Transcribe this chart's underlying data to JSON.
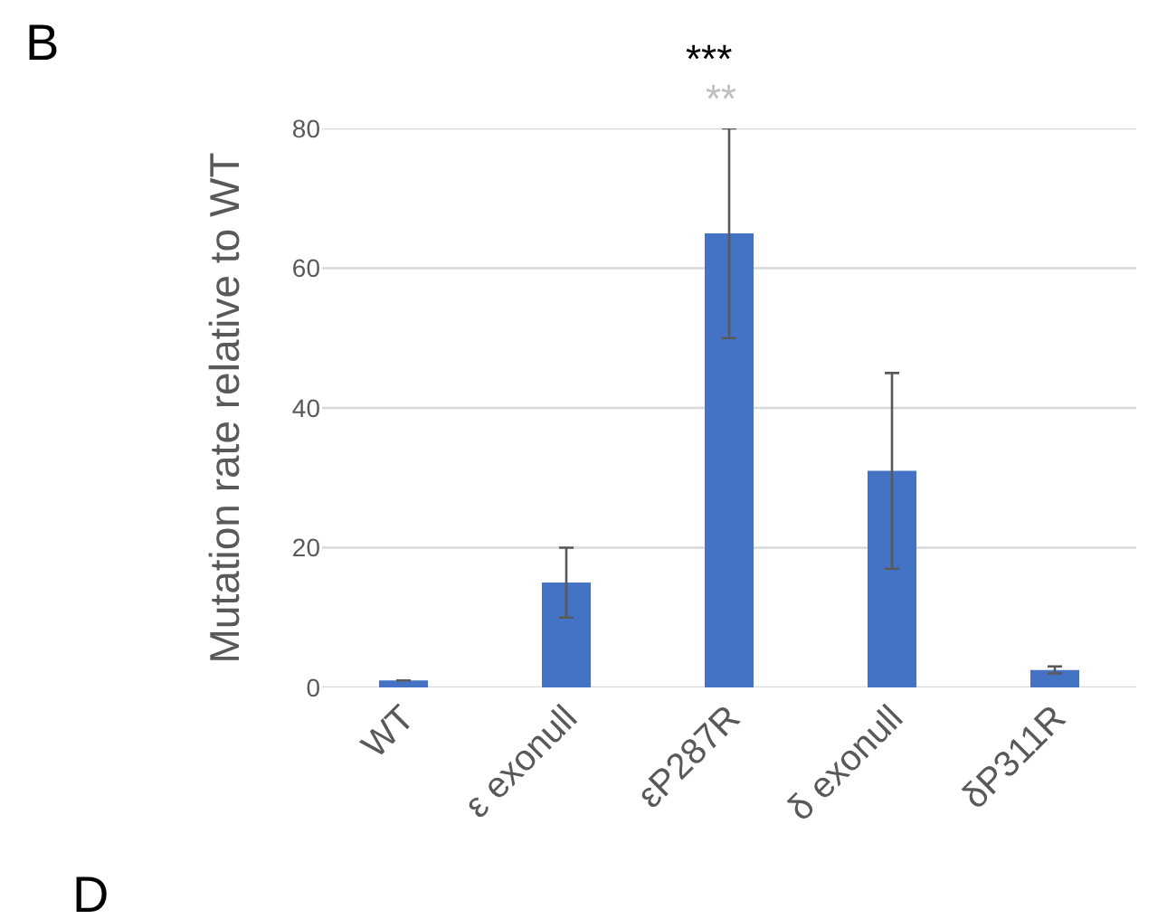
{
  "chart_data": {
    "type": "bar",
    "ylabel": "Mutation rate relative to WT",
    "categories": [
      "WT",
      "ε exonull",
      "εP287R",
      "δ exonull",
      "δP311R"
    ],
    "values": [
      1,
      15,
      65,
      31,
      2.5
    ],
    "errors": [
      null,
      [
        10,
        20
      ],
      [
        50,
        80
      ],
      [
        17,
        45
      ],
      [
        2,
        3
      ]
    ],
    "color": "#4472c4",
    "ylim": [
      0,
      80
    ],
    "yticks": [
      0,
      20,
      40,
      60,
      80
    ],
    "grid": "y",
    "annotations": [
      "***",
      "**",
      "B",
      "D"
    ]
  }
}
